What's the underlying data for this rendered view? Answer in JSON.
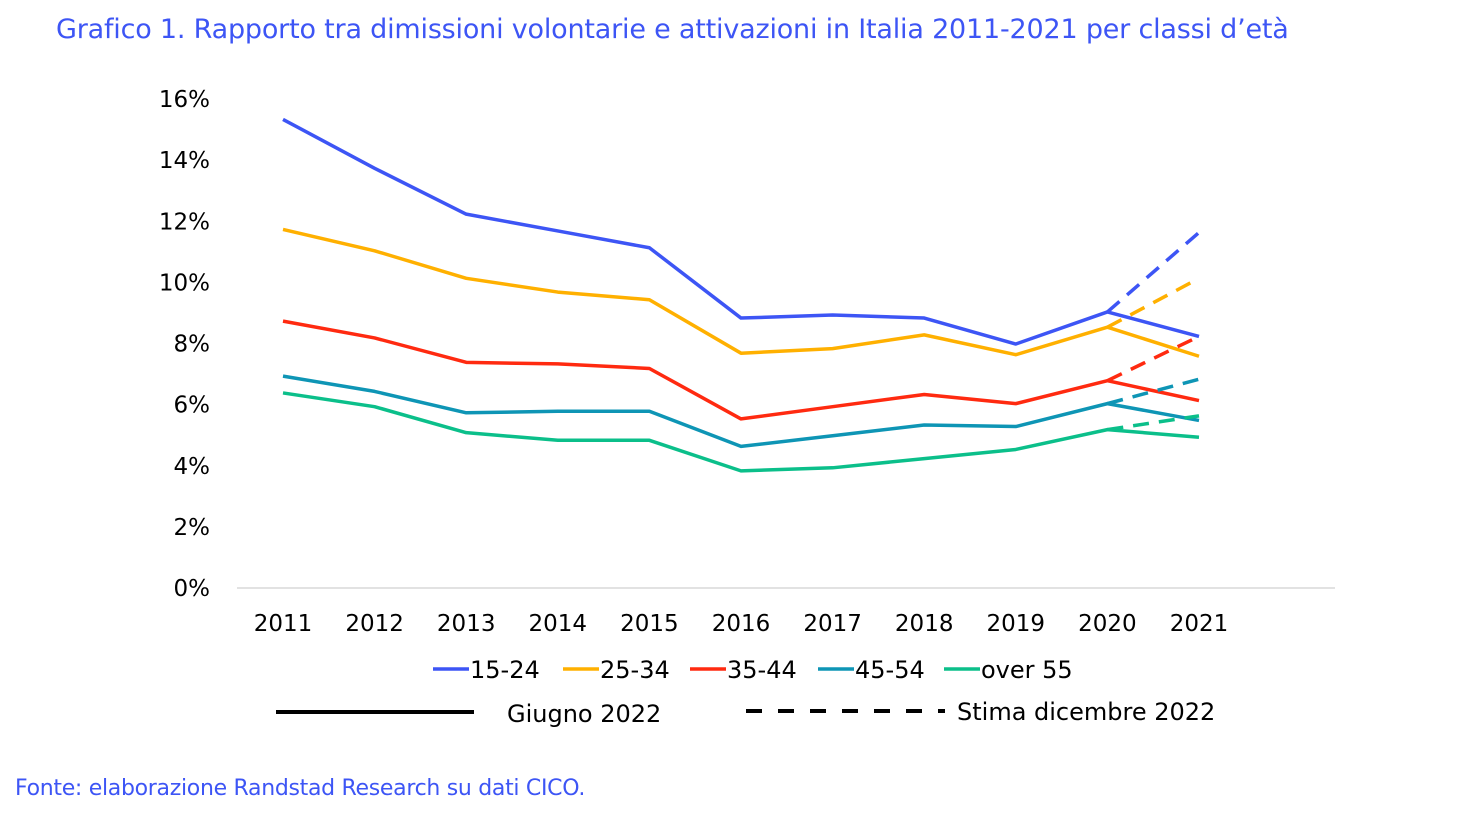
{
  "title": "Grafico 1. Rapporto tra dimissioni volontarie e attivazioni in Italia 2011-2021 per classi d’età",
  "source": "Fonte: elaborazione Randstad Research su dati CICO.",
  "chart_data": {
    "type": "line",
    "title": "Grafico 1. Rapporto tra dimissioni volontarie e attivazioni in Italia 2011-2021 per classi d’età",
    "xlabel": "",
    "ylabel": "",
    "categories": [
      "2011",
      "2012",
      "2013",
      "2014",
      "2015",
      "2016",
      "2017",
      "2018",
      "2019",
      "2020",
      "2021"
    ],
    "ylim": [
      0,
      16
    ],
    "yticks": [
      0,
      2,
      4,
      6,
      8,
      10,
      12,
      14,
      16
    ],
    "ytick_labels": [
      "0%",
      "2%",
      "4%",
      "6%",
      "8%",
      "10%",
      "12%",
      "14%",
      "16%"
    ],
    "y_unit": "%",
    "grid": false,
    "legend_position": "bottom",
    "series": [
      {
        "name": "15-24",
        "color": "#3d55f5",
        "values": [
          15.3,
          13.7,
          12.2,
          11.65,
          11.1,
          8.8,
          8.9,
          8.8,
          7.95,
          9.0,
          8.2
        ],
        "estimate": {
          "x": [
            "2020",
            "2021"
          ],
          "values": [
            9.0,
            11.6
          ]
        }
      },
      {
        "name": "25-34",
        "color": "#ffb000",
        "values": [
          11.7,
          11.0,
          10.1,
          9.65,
          9.4,
          7.65,
          7.8,
          8.25,
          7.6,
          8.5,
          7.55
        ],
        "estimate": {
          "x": [
            "2020",
            "2021"
          ],
          "values": [
            8.5,
            10.1
          ]
        }
      },
      {
        "name": "35-44",
        "color": "#ff2a10",
        "values": [
          8.7,
          8.15,
          7.35,
          7.3,
          7.15,
          5.5,
          5.9,
          6.3,
          6.0,
          6.75,
          6.1
        ],
        "estimate": {
          "x": [
            "2020",
            "2021"
          ],
          "values": [
            6.75,
            8.2
          ]
        }
      },
      {
        "name": "45-54",
        "color": "#0e95b5",
        "values": [
          6.9,
          6.4,
          5.7,
          5.75,
          5.75,
          4.6,
          4.95,
          5.3,
          5.25,
          6.0,
          5.45
        ],
        "estimate": {
          "x": [
            "2020",
            "2021"
          ],
          "values": [
            6.0,
            6.8
          ]
        }
      },
      {
        "name": "over 55",
        "color": "#0bbf8a",
        "values": [
          6.35,
          5.9,
          5.05,
          4.8,
          4.8,
          3.8,
          3.9,
          4.2,
          4.5,
          5.15,
          4.9
        ],
        "estimate": {
          "x": [
            "2020",
            "2021"
          ],
          "values": [
            5.15,
            5.6
          ]
        }
      }
    ],
    "line_style_legend": [
      {
        "label": "Giugno 2022",
        "style": "solid"
      },
      {
        "label": "Stima dicembre 2022",
        "style": "dashed"
      }
    ]
  }
}
